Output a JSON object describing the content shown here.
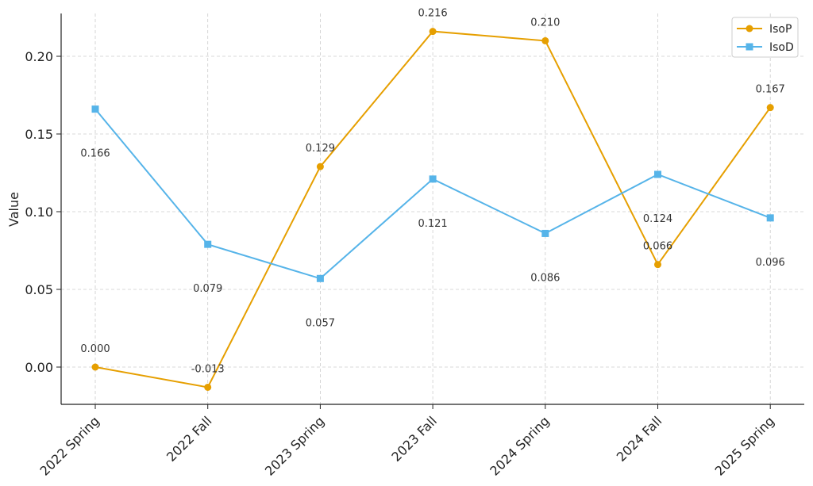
{
  "chart_data": {
    "type": "line",
    "title": "",
    "xlabel": "",
    "ylabel": "Value",
    "categories": [
      "2022 Spring",
      "2022 Fall",
      "2023 Spring",
      "2023 Fall",
      "2024 Spring",
      "2024 Fall",
      "2025 Spring"
    ],
    "ylim": [
      -0.025,
      0.225
    ],
    "yticks": [
      0.0,
      0.05,
      0.1,
      0.15,
      0.2
    ],
    "ytick_labels": [
      "0.00",
      "0.05",
      "0.10",
      "0.15",
      "0.20"
    ],
    "grid": true,
    "legend_position": "top-right",
    "series": [
      {
        "name": "IsoP",
        "color": "#E69F00",
        "marker": "circle",
        "values": [
          0.0,
          -0.013,
          0.129,
          0.216,
          0.21,
          0.066,
          0.167
        ],
        "labels": [
          "0.000",
          "-0.013",
          "0.129",
          "0.216",
          "0.210",
          "0.066",
          "0.167"
        ]
      },
      {
        "name": "IsoD",
        "color": "#56B4E9",
        "marker": "square",
        "values": [
          0.166,
          0.079,
          0.057,
          0.121,
          0.086,
          0.124,
          0.096
        ],
        "labels": [
          "0.166",
          "0.079",
          "0.057",
          "0.121",
          "0.086",
          "0.124",
          "0.096"
        ]
      }
    ]
  }
}
